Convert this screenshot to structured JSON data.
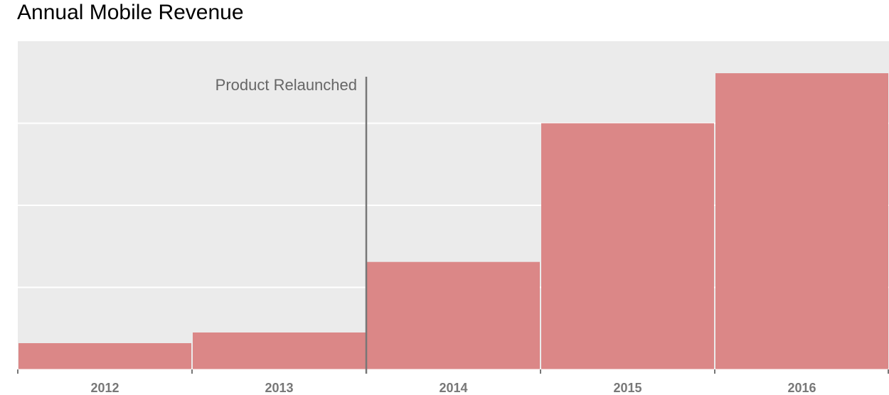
{
  "chart_data": {
    "type": "bar",
    "title": "Annual Mobile Revenue",
    "xlabel": "",
    "ylabel": "",
    "categories": [
      "2012",
      "2013",
      "2014",
      "2015",
      "2016"
    ],
    "values": [
      1.6,
      2.25,
      6.55,
      15.0,
      18.05
    ],
    "ylim": [
      0,
      20
    ],
    "yticks": [
      0,
      5,
      10,
      15,
      20
    ],
    "grid": true,
    "legend": "none",
    "annotations": [
      {
        "text": "Product Relaunched",
        "x": "2013/2014 boundary"
      }
    ],
    "colors": {
      "bar": "#db8787",
      "background": "#ebebeb",
      "grid": "#ffffff",
      "annotation_line": "#777777",
      "axis_tick": "#777777"
    }
  }
}
